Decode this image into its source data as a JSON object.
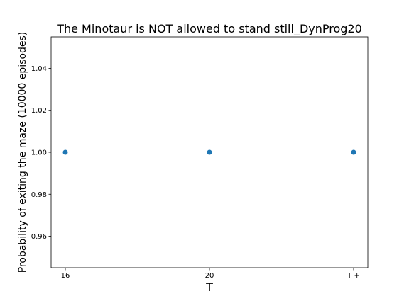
{
  "chart_data": {
    "type": "scatter",
    "title": "The Minotaur is NOT allowed to stand still_DynProg20",
    "xlabel": "T",
    "ylabel": "Probability of exiting the maze (10000 episodes)",
    "categories": [
      "16",
      "20",
      "T +"
    ],
    "values": [
      1.0,
      1.0,
      1.0
    ],
    "ylim": [
      0.945,
      1.055
    ],
    "yticks": [
      0.96,
      0.98,
      1.0,
      1.02,
      1.04
    ],
    "ytick_labels": [
      "0.96",
      "0.98",
      "1.00",
      "1.02",
      "1.04"
    ],
    "grid": false,
    "colors": {
      "marker": "#1f77b4",
      "axes": "#000000",
      "background": "#ffffff"
    }
  }
}
